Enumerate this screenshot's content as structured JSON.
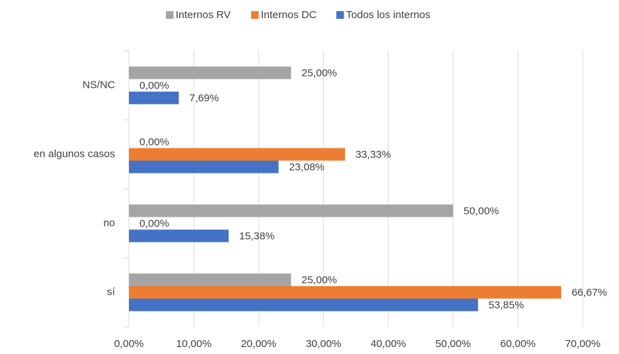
{
  "chart_data": {
    "type": "hbar",
    "categories": [
      "NS/NC",
      "en algunos casos",
      "no",
      "sí"
    ],
    "series": [
      {
        "name": "Internos RV",
        "color": "#a5a5a5",
        "values": [
          25,
          0,
          50,
          25
        ],
        "value_labels": [
          "25,00%",
          "0,00%",
          "50,00%",
          "25,00%"
        ]
      },
      {
        "name": "Internos DC",
        "color": "#ed7d31",
        "values": [
          0,
          33.33,
          0,
          66.67
        ],
        "value_labels": [
          "0,00%",
          "33,33%",
          "0,00%",
          "66,67%"
        ]
      },
      {
        "name": "Todos los internos",
        "color": "#4472c4",
        "values": [
          7.69,
          23.08,
          15.38,
          53.85
        ],
        "value_labels": [
          "7,69%",
          "23,08%",
          "15,38%",
          "53,85%"
        ]
      }
    ],
    "xlim": [
      0,
      70
    ],
    "xticks": [
      {
        "value": 0,
        "label": "0,00%"
      },
      {
        "value": 10,
        "label": "10,00%"
      },
      {
        "value": 20,
        "label": "20,00%"
      },
      {
        "value": 30,
        "label": "30,00%"
      },
      {
        "value": 40,
        "label": "40,00%"
      },
      {
        "value": 50,
        "label": "50,00%"
      },
      {
        "value": 60,
        "label": "60,00%"
      },
      {
        "value": 70,
        "label": "70,00%"
      }
    ],
    "grid": true,
    "legend": "top"
  }
}
